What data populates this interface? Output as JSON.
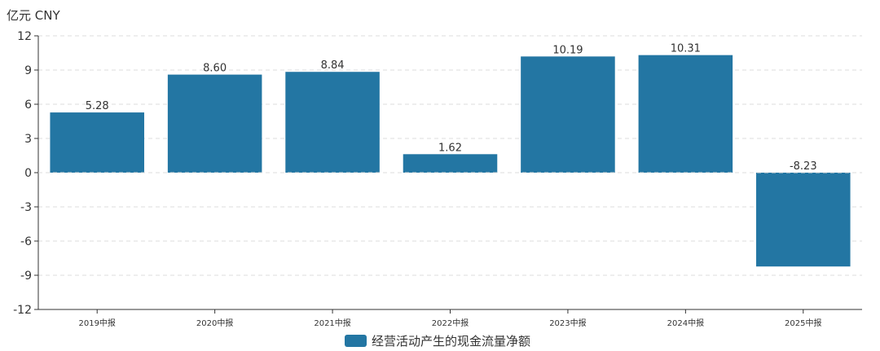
{
  "chart_data": {
    "type": "bar",
    "unit_label": "亿元  CNY",
    "categories": [
      "2019中报",
      "2020中报",
      "2021中报",
      "2022中报",
      "2023中报",
      "2024中报",
      "2025中报"
    ],
    "series": [
      {
        "name": "经营活动产生的现金流量净额",
        "values": [
          5.28,
          8.6,
          8.84,
          1.62,
          10.19,
          10.31,
          -8.23
        ],
        "labels": [
          "5.28",
          "8.60",
          "8.84",
          "1.62",
          "10.19",
          "10.31",
          "-8.23"
        ],
        "color": "#2376a3"
      }
    ],
    "ylim": [
      -12,
      12
    ],
    "yticks": [
      "12",
      "9",
      "6",
      "3",
      "0",
      "-3",
      "-6",
      "-9",
      "-12"
    ],
    "ytick_values": [
      12,
      9,
      6,
      3,
      0,
      -3,
      -6,
      -9,
      -12
    ],
    "grid": true,
    "legend_position": "bottom-center",
    "axis_color": "#333333",
    "grid_color": "#dddddd"
  }
}
